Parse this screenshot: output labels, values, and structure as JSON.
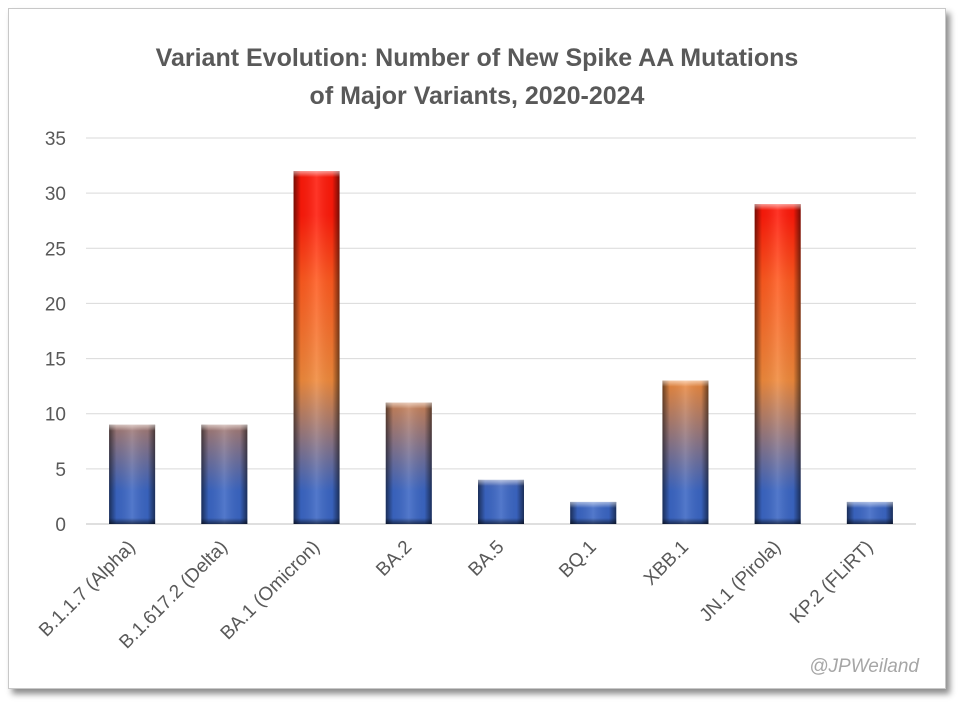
{
  "chart_data": {
    "type": "bar",
    "title": "Variant Evolution: Number of New Spike AA Mutations of Major Variants, 2020-2024",
    "title_lines": [
      "Variant Evolution: Number of New Spike AA Mutations",
      "of Major Variants, 2020-2024"
    ],
    "categories": [
      "B.1.1.7 (Alpha)",
      "B.1.617.2 (Delta)",
      "BA.1 (Omicron)",
      "BA.2",
      "BA.5",
      "BQ.1",
      "XBB.1",
      "JN.1 (Pirola)",
      "KP.2 (FLiRT)"
    ],
    "values": [
      9,
      9,
      32,
      11,
      4,
      2,
      13,
      29,
      2
    ],
    "ylim": [
      0,
      35
    ],
    "yticks": [
      0,
      5,
      10,
      15,
      20,
      25,
      30,
      35
    ],
    "xlabel": "",
    "ylabel": "",
    "grid": true,
    "legend": "none",
    "colors": {
      "low": "#3b66c4",
      "mid": "#f08a3c",
      "high": "#ff1a0a",
      "grid": "#d9d9d9",
      "text": "#595959"
    }
  },
  "watermark": "@JPWeiland"
}
